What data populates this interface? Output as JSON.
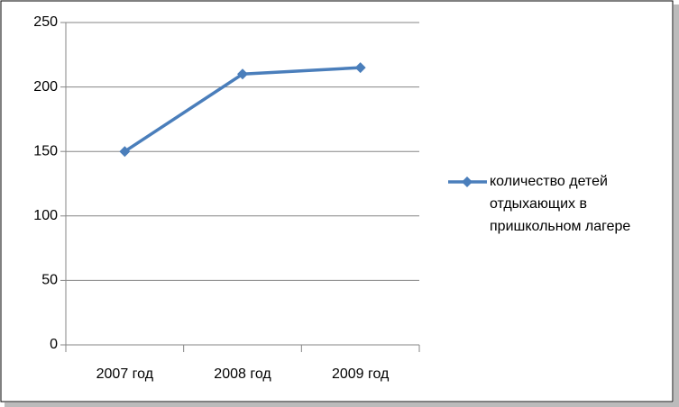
{
  "chart_data": {
    "type": "line",
    "categories": [
      "2007 год",
      "2008 год",
      "2009 год"
    ],
    "series": [
      {
        "name": "количество детей отдыхающих в пришкольном лагере",
        "color": "#4a7ebb",
        "values": [
          150,
          210,
          215
        ]
      }
    ],
    "ylim": [
      0,
      250
    ],
    "yticks": [
      0,
      50,
      100,
      150,
      200,
      250
    ],
    "grid": true,
    "legend": "right"
  }
}
